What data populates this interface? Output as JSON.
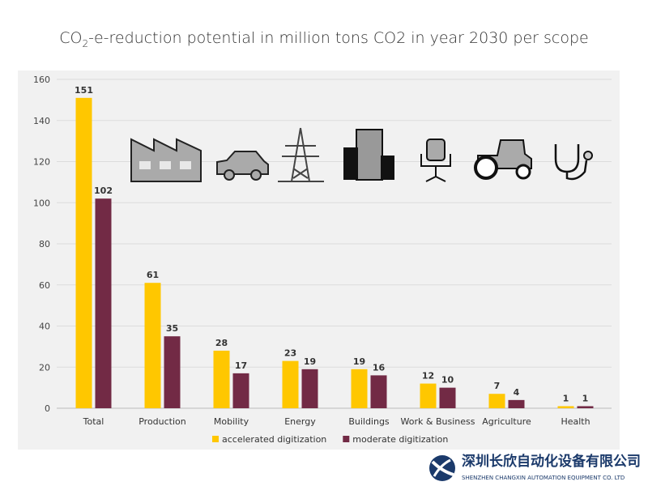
{
  "chart_data": {
    "type": "bar",
    "title_main": "CO",
    "title_sub": "2",
    "title_rest": "-e-reduction potential in million tons CO2 in year 2030 per scope",
    "categories": [
      "Total",
      "Production",
      "Mobility",
      "Energy",
      "Buildings",
      "Work & Business",
      "Agriculture",
      "Health"
    ],
    "series": [
      {
        "name": "accelerated digitization",
        "color": "#ffc700",
        "values": [
          151,
          61,
          28,
          23,
          19,
          12,
          7,
          1
        ]
      },
      {
        "name": "moderate digitization",
        "color": "#722a45",
        "values": [
          102,
          35,
          17,
          19,
          16,
          10,
          4,
          1
        ]
      }
    ],
    "ylim": [
      0,
      160
    ],
    "yticks": [
      0,
      20,
      40,
      60,
      80,
      100,
      120,
      140,
      160
    ],
    "grid": true,
    "legend": "bottom",
    "icons": [
      "factory-icon",
      "car-icon",
      "power-pylon-icon",
      "buildings-icon",
      "office-chair-icon",
      "tractor-icon",
      "stethoscope-icon"
    ]
  },
  "watermark": {
    "cn": "深圳长欣自动化设备有限公司",
    "en": "SHENZHEN CHANGXIN AUTOMATION EQUIPMENT CO. LTD"
  }
}
